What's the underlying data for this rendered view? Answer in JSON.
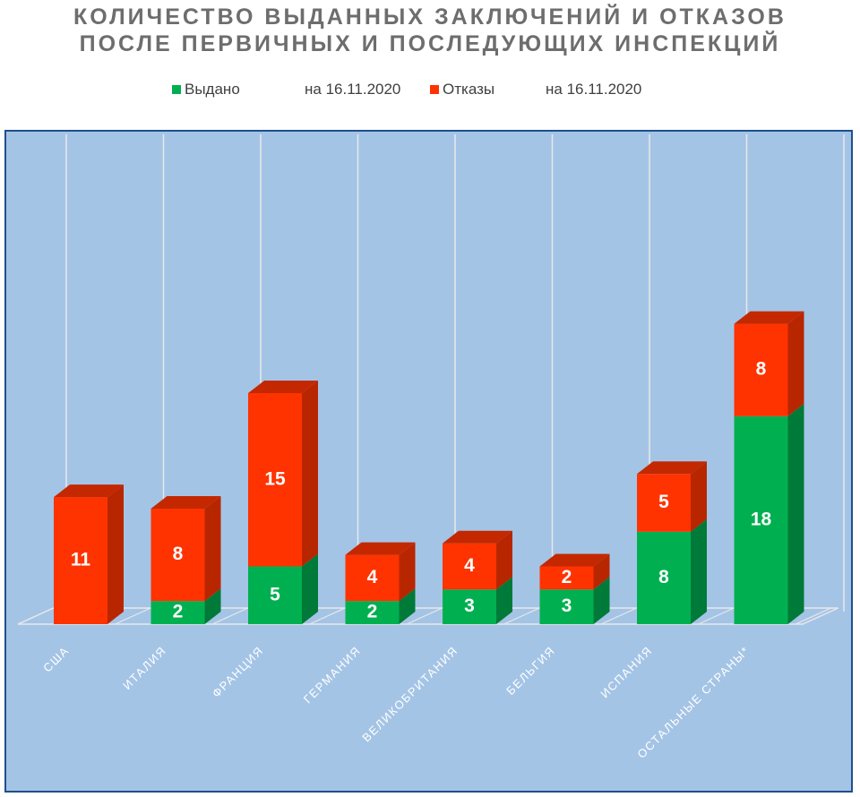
{
  "title_lines": [
    "КОЛИЧЕСТВО ВЫДАННЫХ ЗАКЛЮЧЕНИЙ И ОТКАЗОВ",
    "ПОСЛЕ ПЕРВИЧНЫХ И ПОСЛЕДУЮЩИХ ИНСПЕКЦИЙ"
  ],
  "legend": [
    {
      "label": "Выдано",
      "date": "на 16.11.2020",
      "color": "#00b050"
    },
    {
      "label": "Отказы",
      "date": "на 16.11.2020",
      "color": "#ff3300"
    }
  ],
  "colors": {
    "issued_front": "#00b050",
    "issued_side": "#007a38",
    "issued_top": "#00c85a",
    "refused_front": "#ff3300",
    "refused_side": "#b82600",
    "refused_top": "#c42800",
    "background": "#a4c4e6",
    "frame": "#1f4e8c",
    "grid": "#e8e8e8"
  },
  "chart_data": {
    "type": "bar",
    "stacked": true,
    "three_d": true,
    "categories": [
      "США",
      "ИТАЛИЯ",
      "ФРАНЦИЯ",
      "ГЕРМАНИЯ",
      "ВЕЛИКОБРИТАНИЯ",
      "БЕЛЬГИЯ",
      "ИСПАНИЯ",
      "ОСТАЛЬНЫЕ СТРАНЫ*"
    ],
    "series": [
      {
        "name": "Выдано",
        "values": [
          0,
          2,
          5,
          2,
          3,
          3,
          8,
          18
        ]
      },
      {
        "name": "Отказы",
        "values": [
          11,
          8,
          15,
          4,
          4,
          2,
          5,
          8
        ]
      }
    ],
    "grid": true,
    "legend_position": "top"
  }
}
